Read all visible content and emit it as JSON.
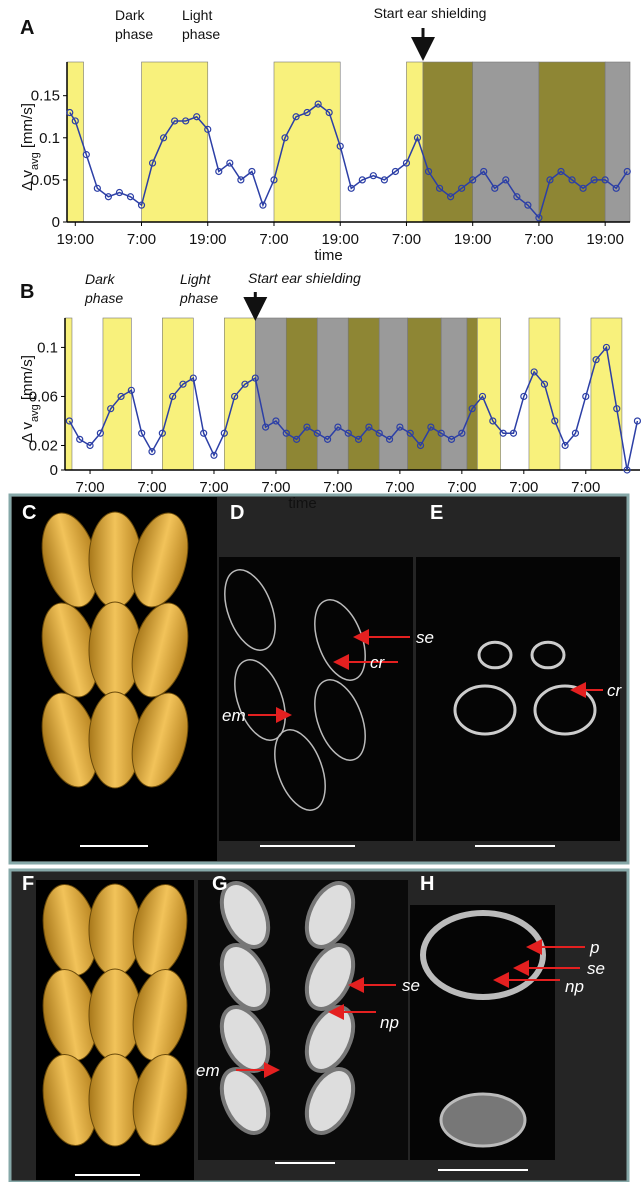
{
  "chart_data": [
    {
      "type": "line",
      "panel_label": "A",
      "phase_labels": [
        [
          "Dark",
          "phase"
        ],
        [
          "Light",
          "phase"
        ]
      ],
      "event_label": "Start ear shielding",
      "event_x": 63,
      "y_label": [
        "Δ v",
        "avg",
        " [mm/s]"
      ],
      "x_label": "time",
      "xlim": [
        -1.5,
        100.5
      ],
      "ylim": [
        0,
        0.19
      ],
      "xticks": [
        {
          "value": 0,
          "label": "19:00"
        },
        {
          "value": 12,
          "label": "7:00"
        },
        {
          "value": 24,
          "label": "19:00"
        },
        {
          "value": 36,
          "label": "7:00"
        },
        {
          "value": 48,
          "label": "19:00"
        },
        {
          "value": 60,
          "label": "7:00"
        },
        {
          "value": 72,
          "label": "19:00"
        },
        {
          "value": 84,
          "label": "7:00"
        },
        {
          "value": 96,
          "label": "19:00"
        }
      ],
      "yticks": [
        0,
        0.05,
        0.1,
        0.15
      ],
      "phases": [
        {
          "start": -1.5,
          "end": 1.5,
          "color": "#f8f17c"
        },
        {
          "start": 12,
          "end": 24,
          "color": "#f8f17c"
        },
        {
          "start": 36,
          "end": 48,
          "color": "#f8f17c"
        },
        {
          "start": 60,
          "end": 63,
          "color": "#f8f17c"
        },
        {
          "start": 63,
          "end": 72,
          "color": "#8e8634"
        },
        {
          "start": 72,
          "end": 84,
          "color": "#9a9a9a"
        },
        {
          "start": 84,
          "end": 96,
          "color": "#8e8634"
        },
        {
          "start": 96,
          "end": 100.5,
          "color": "#9a9a9a"
        }
      ],
      "x": [
        -1,
        0,
        2,
        4,
        6,
        8,
        10,
        12,
        14,
        16,
        18,
        20,
        22,
        24,
        26,
        28,
        30,
        32,
        34,
        36,
        38,
        40,
        42,
        44,
        46,
        48,
        50,
        52,
        54,
        56,
        58,
        60,
        62,
        64,
        66,
        68,
        70,
        72,
        74,
        76,
        78,
        80,
        82,
        84,
        86,
        88,
        90,
        92,
        94,
        96,
        98,
        100
      ],
      "series": [
        {
          "color": "#2c3fa6",
          "values": [
            0.13,
            0.12,
            0.08,
            0.04,
            0.03,
            0.035,
            0.03,
            0.02,
            0.07,
            0.1,
            0.12,
            0.12,
            0.125,
            0.11,
            0.06,
            0.07,
            0.05,
            0.06,
            0.02,
            0.05,
            0.1,
            0.125,
            0.13,
            0.14,
            0.13,
            0.09,
            0.04,
            0.05,
            0.055,
            0.05,
            0.06,
            0.07,
            0.1,
            0.06,
            0.04,
            0.03,
            0.04,
            0.05,
            0.06,
            0.04,
            0.05,
            0.03,
            0.02,
            0.005,
            0.05,
            0.06,
            0.05,
            0.04,
            0.05,
            0.05,
            0.04,
            0.06
          ]
        }
      ]
    },
    {
      "type": "line",
      "panel_label": "B",
      "phase_labels": [
        [
          "Dark",
          "phase"
        ],
        [
          "Light",
          "phase"
        ]
      ],
      "event_label": "Start ear shielding",
      "event_x": 64,
      "y_label": [
        "Δ v",
        "avg",
        " [mm/s]"
      ],
      "x_label": "time",
      "xlim": [
        -9.7,
        213
      ],
      "ylim": [
        0,
        0.124
      ],
      "xticks": [
        {
          "value": 0,
          "label": "7:00"
        },
        {
          "value": 24,
          "label": "7:00"
        },
        {
          "value": 48,
          "label": "7:00"
        },
        {
          "value": 72,
          "label": "7:00"
        },
        {
          "value": 96,
          "label": "7:00"
        },
        {
          "value": 120,
          "label": "7:00"
        },
        {
          "value": 144,
          "label": "7:00"
        },
        {
          "value": 168,
          "label": "7:00"
        },
        {
          "value": 192,
          "label": "7:00"
        }
      ],
      "yticks": [
        0,
        0.02,
        0.06,
        0.1
      ],
      "phases": [
        {
          "start": -9.7,
          "end": -7,
          "color": "#f8f17c"
        },
        {
          "start": 5,
          "end": 16,
          "color": "#f8f17c"
        },
        {
          "start": 28,
          "end": 40,
          "color": "#f8f17c"
        },
        {
          "start": 52,
          "end": 64,
          "color": "#f8f17c"
        },
        {
          "start": 64,
          "end": 76,
          "color": "#9a9a9a"
        },
        {
          "start": 76,
          "end": 88,
          "color": "#8e8634"
        },
        {
          "start": 88,
          "end": 100,
          "color": "#9a9a9a"
        },
        {
          "start": 100,
          "end": 112,
          "color": "#8e8634"
        },
        {
          "start": 112,
          "end": 123,
          "color": "#9a9a9a"
        },
        {
          "start": 123,
          "end": 136,
          "color": "#8e8634"
        },
        {
          "start": 136,
          "end": 146,
          "color": "#9a9a9a"
        },
        {
          "start": 146,
          "end": 150,
          "color": "#8e8634"
        },
        {
          "start": 150,
          "end": 159,
          "color": "#f8f17c"
        },
        {
          "start": 170,
          "end": 182,
          "color": "#f8f17c"
        },
        {
          "start": 194,
          "end": 206,
          "color": "#f8f17c"
        }
      ],
      "x": [
        -8,
        -4,
        0,
        4,
        8,
        12,
        16,
        20,
        24,
        28,
        32,
        36,
        40,
        44,
        48,
        52,
        56,
        60,
        64,
        68,
        72,
        76,
        80,
        84,
        88,
        92,
        96,
        100,
        104,
        108,
        112,
        116,
        120,
        124,
        128,
        132,
        136,
        140,
        144,
        148,
        152,
        156,
        160,
        164,
        168,
        172,
        176,
        180,
        184,
        188,
        192,
        196,
        200,
        204,
        208,
        212
      ],
      "series": [
        {
          "color": "#2c3fa6",
          "values": [
            0.04,
            0.025,
            0.02,
            0.03,
            0.05,
            0.06,
            0.065,
            0.03,
            0.015,
            0.03,
            0.06,
            0.07,
            0.075,
            0.03,
            0.012,
            0.03,
            0.06,
            0.07,
            0.075,
            0.035,
            0.04,
            0.03,
            0.025,
            0.035,
            0.03,
            0.025,
            0.035,
            0.03,
            0.025,
            0.035,
            0.03,
            0.025,
            0.035,
            0.03,
            0.02,
            0.035,
            0.03,
            0.025,
            0.03,
            0.05,
            0.06,
            0.04,
            0.03,
            0.03,
            0.06,
            0.08,
            0.07,
            0.04,
            0.02,
            0.03,
            0.06,
            0.09,
            0.1,
            0.05,
            0.0,
            0.04
          ]
        }
      ]
    }
  ],
  "panels": [
    {
      "letter": "C"
    },
    {
      "letter": "D",
      "labels": [
        "se",
        "cr",
        "em"
      ]
    },
    {
      "letter": "E",
      "labels": [
        "cr"
      ]
    },
    {
      "letter": "F"
    },
    {
      "letter": "G",
      "labels": [
        "se",
        "np",
        "em"
      ]
    },
    {
      "letter": "H",
      "labels": [
        "p",
        "se",
        "np"
      ]
    }
  ]
}
